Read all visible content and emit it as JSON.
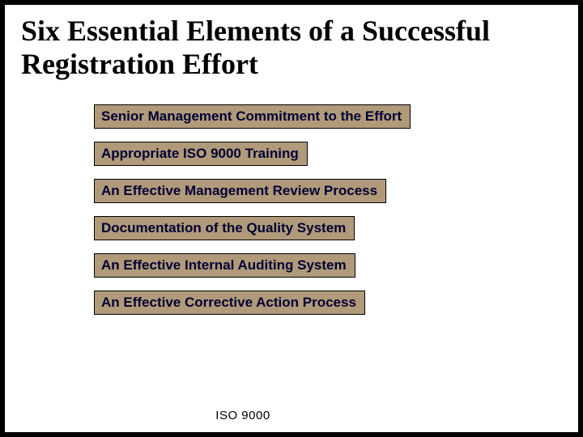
{
  "slide": {
    "title": "Six Essential Elements of a Successful Registration Effort",
    "title_fontsize": 36,
    "title_font": "Times New Roman",
    "title_color": "#000000",
    "items": [
      "Senior Management Commitment to the Effort",
      "Appropriate ISO 9000 Training",
      "An Effective Management Review Process",
      "Documentation of the Quality System",
      "An Effective Internal Auditing System",
      "An Effective Corrective Action Process"
    ],
    "item_background": "#b09a7a",
    "item_border_color": "#000000",
    "item_text_color": "#000033",
    "item_font": "Verdana",
    "item_fontsize": 17,
    "item_fontweight": 700,
    "footer": "ISO 9000",
    "footer_fontsize": 15,
    "frame_border_color": "#000000",
    "frame_border_width": 6,
    "background_color": "#ffffff"
  }
}
